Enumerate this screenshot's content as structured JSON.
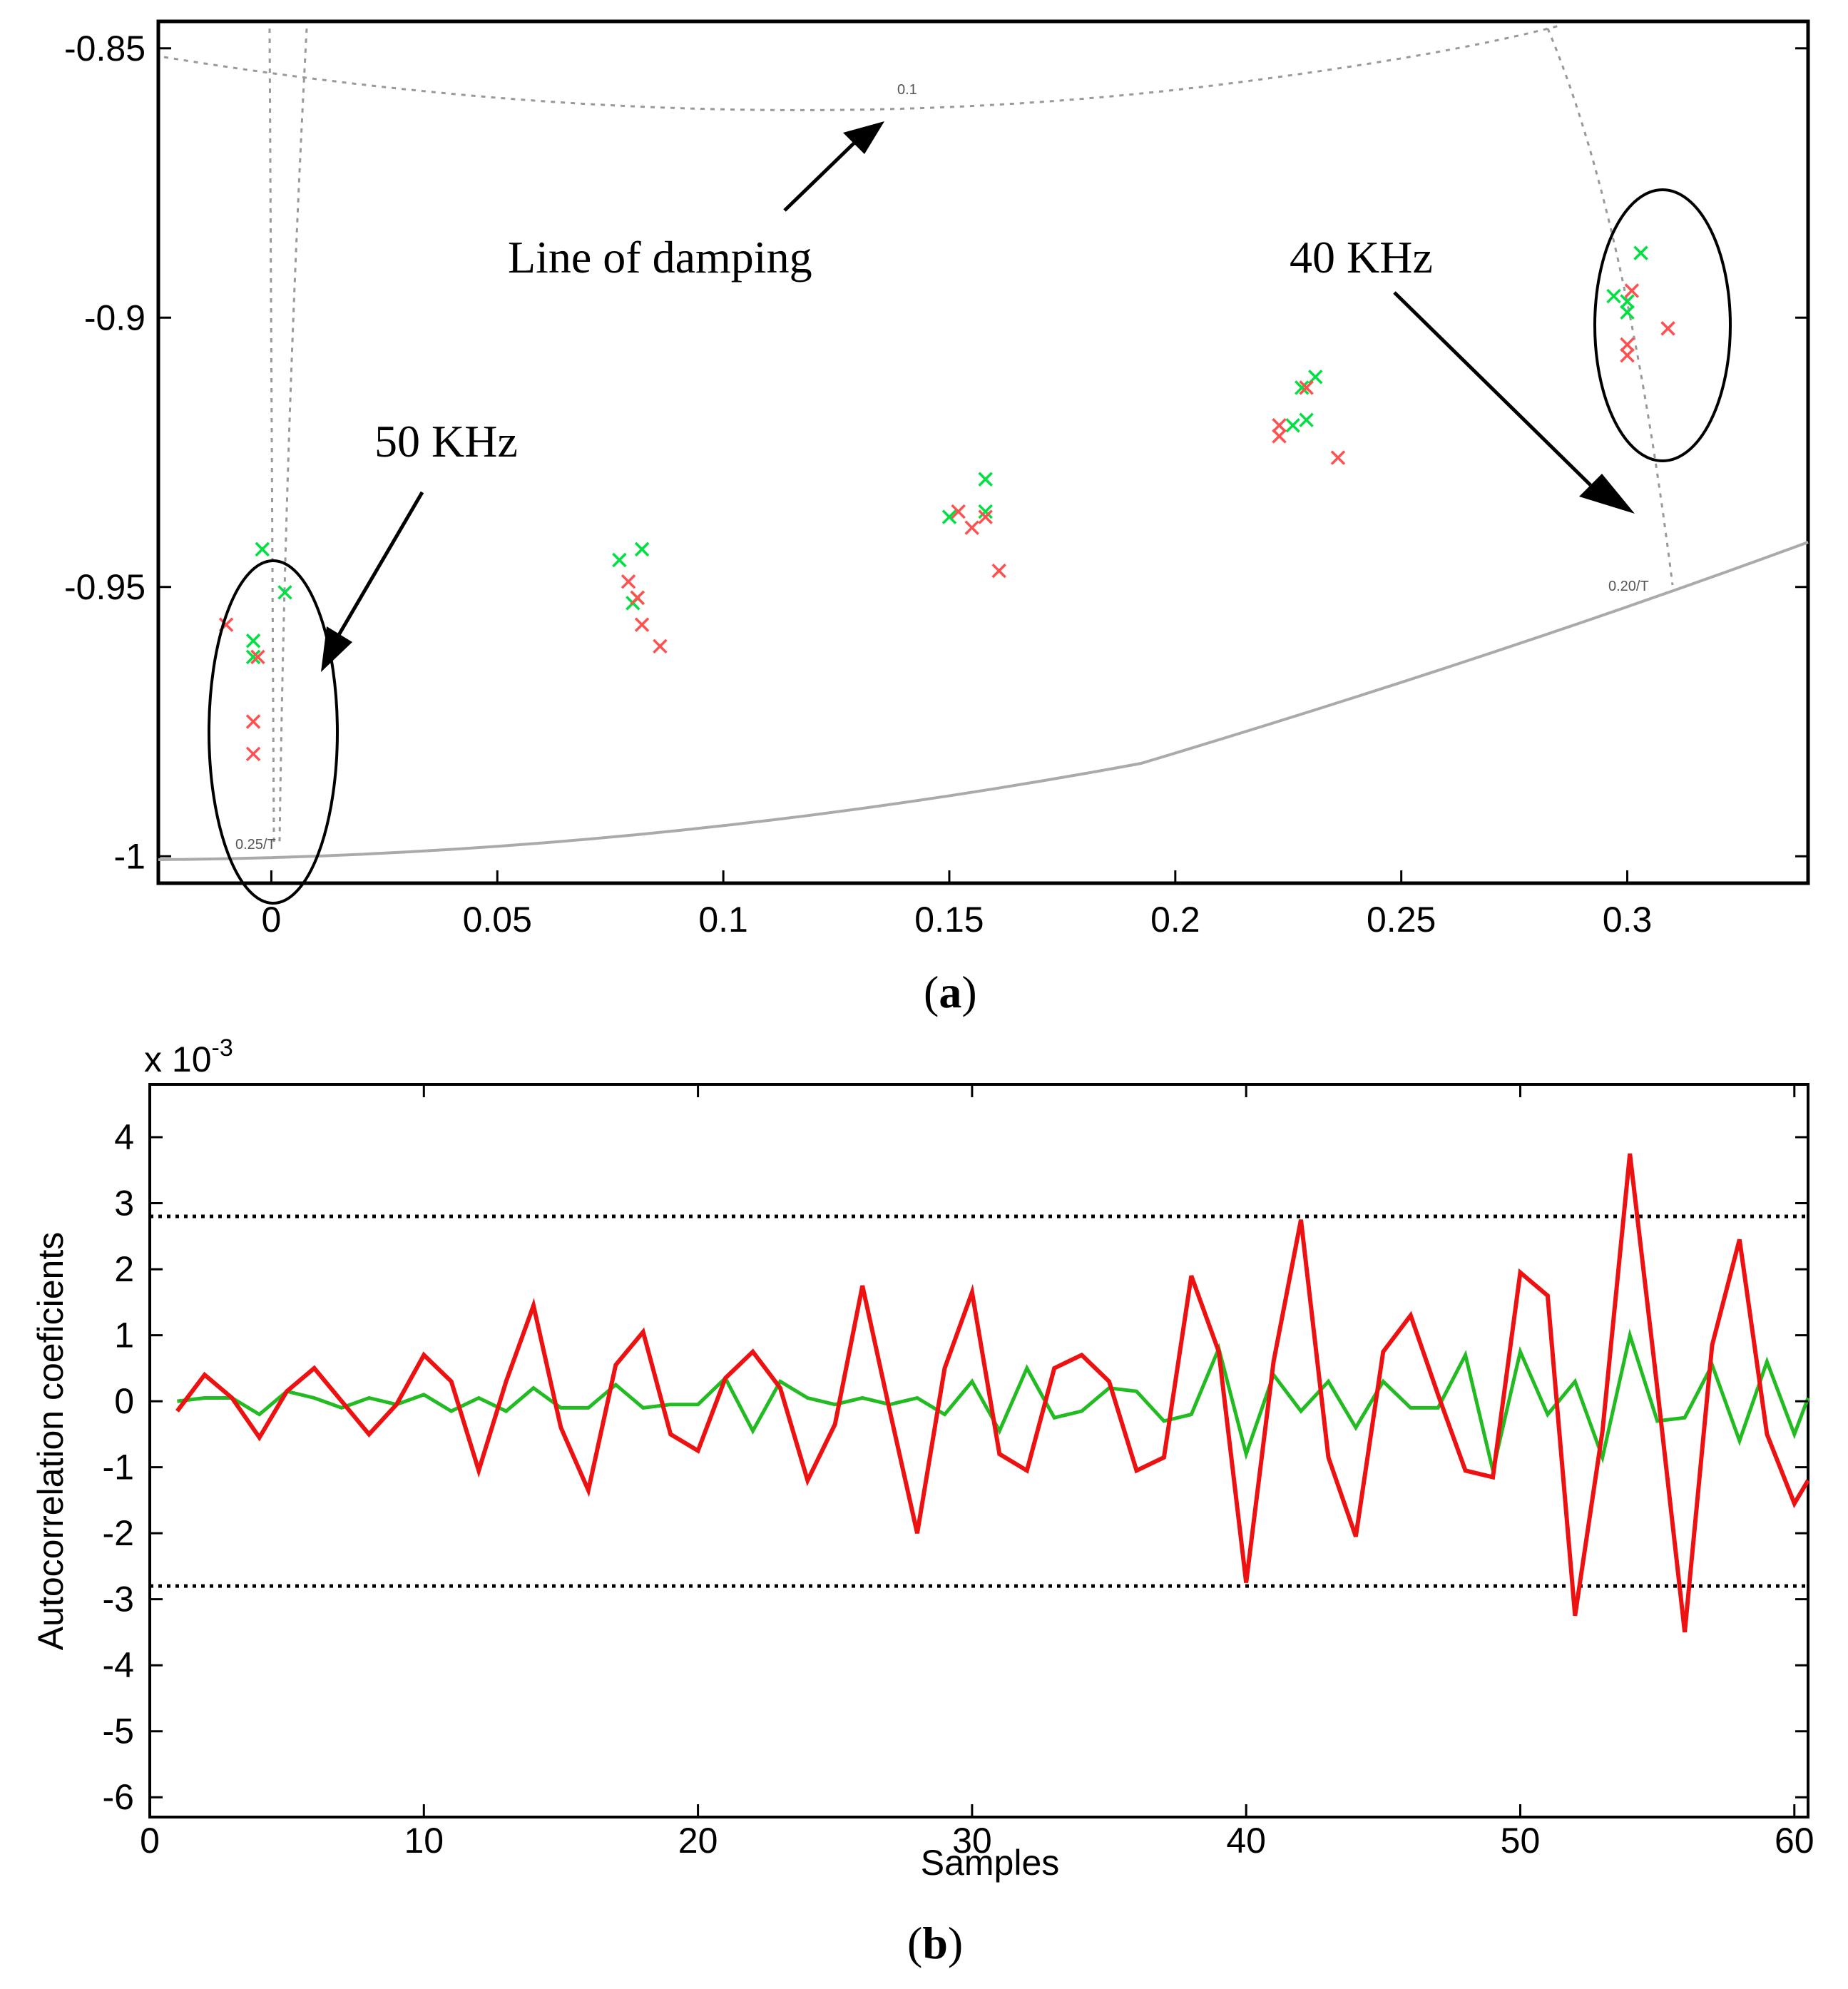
{
  "chart_data": [
    {
      "type": "scatter",
      "panel_label": "(a)",
      "panel_letter": "a",
      "xlim": [
        -0.025,
        0.34
      ],
      "ylim": [
        -1.005,
        -0.845
      ],
      "x_ticks": [
        "0",
        "0.05",
        "0.1",
        "0.15",
        "0.2",
        "0.25",
        "0.3"
      ],
      "x_tick_values": [
        0,
        0.05,
        0.1,
        0.15,
        0.2,
        0.25,
        0.3
      ],
      "y_ticks": [
        "-0.85",
        "-0.9",
        "-0.95",
        "-1"
      ],
      "y_tick_values": [
        -0.85,
        -0.9,
        -0.95,
        -1
      ],
      "grid_labels": [
        "0.1",
        "0.25/T",
        "0.20/T"
      ],
      "annotations": [
        "Line of damping",
        "40 KHz",
        "50 KHz"
      ],
      "series": [
        {
          "name": "green poles",
          "color": "#00e040",
          "points": [
            [
              -0.002,
              -0.943
            ],
            [
              0.003,
              -0.951
            ],
            [
              -0.004,
              -0.96
            ],
            [
              -0.004,
              -0.963
            ],
            [
              0.077,
              -0.945
            ],
            [
              0.082,
              -0.943
            ],
            [
              0.081,
              -0.952
            ],
            [
              0.08,
              -0.953
            ],
            [
              0.15,
              -0.937
            ],
            [
              0.158,
              -0.93
            ],
            [
              0.158,
              -0.936
            ],
            [
              0.226,
              -0.92
            ],
            [
              0.229,
              -0.919
            ],
            [
              0.228,
              -0.913
            ],
            [
              0.231,
              -0.911
            ],
            [
              0.297,
              -0.896
            ],
            [
              0.3,
              -0.897
            ],
            [
              0.3,
              -0.899
            ],
            [
              0.303,
              -0.888
            ]
          ]
        },
        {
          "name": "red poles",
          "color": "#ff5050",
          "points": [
            [
              -0.01,
              -0.957
            ],
            [
              -0.003,
              -0.963
            ],
            [
              -0.004,
              -0.975
            ],
            [
              -0.004,
              -0.981
            ],
            [
              0.079,
              -0.949
            ],
            [
              0.081,
              -0.952
            ],
            [
              0.082,
              -0.957
            ],
            [
              0.086,
              -0.961
            ],
            [
              0.152,
              -0.936
            ],
            [
              0.155,
              -0.939
            ],
            [
              0.158,
              -0.937
            ],
            [
              0.161,
              -0.947
            ],
            [
              0.223,
              -0.92
            ],
            [
              0.223,
              -0.922
            ],
            [
              0.229,
              -0.913
            ],
            [
              0.236,
              -0.926
            ],
            [
              0.301,
              -0.895
            ],
            [
              0.3,
              -0.905
            ],
            [
              0.3,
              -0.907
            ],
            [
              0.309,
              -0.902
            ]
          ]
        }
      ]
    },
    {
      "type": "line",
      "panel_label": "(b)",
      "panel_letter": "b",
      "xlabel": "Samples",
      "ylabel": "Autocorrelation coeficients",
      "y_multiplier": "x 10",
      "y_multiplier_exp": "-3",
      "xlim": [
        0,
        60.5
      ],
      "ylim": [
        -6.3,
        4.8
      ],
      "x_ticks": [
        "0",
        "10",
        "20",
        "30",
        "40",
        "50",
        "60"
      ],
      "x_tick_values": [
        0,
        10,
        20,
        30,
        40,
        50,
        60
      ],
      "y_ticks": [
        "4",
        "3",
        "2",
        "1",
        "0",
        "-1",
        "-2",
        "-3",
        "-4",
        "-5",
        "-6"
      ],
      "y_tick_values": [
        4,
        3,
        2,
        1,
        0,
        -1,
        -2,
        -3,
        -4,
        -5,
        -6
      ],
      "confidence_bounds": [
        2.8,
        -2.8
      ],
      "x": [
        1,
        2,
        3,
        4,
        5,
        6,
        7,
        8,
        9,
        10,
        11,
        12,
        13,
        14,
        15,
        16,
        17,
        18,
        19,
        20,
        21,
        22,
        23,
        24,
        25,
        26,
        27,
        28,
        29,
        30,
        31,
        32,
        33,
        34,
        35,
        36,
        37,
        38,
        39,
        40,
        41,
        42,
        43,
        44,
        45,
        46,
        47,
        48,
        49,
        50,
        51,
        52,
        53,
        54,
        55,
        56,
        57,
        58,
        59,
        60,
        60.5
      ],
      "series": [
        {
          "name": "red",
          "color": "#ee1111",
          "values": [
            -0.15,
            0.4,
            0.05,
            -0.55,
            0.15,
            0.5,
            0.0,
            -0.5,
            -0.05,
            0.7,
            0.3,
            -1.05,
            0.3,
            1.45,
            -0.4,
            -1.35,
            0.55,
            1.05,
            -0.5,
            -0.75,
            0.35,
            0.75,
            0.2,
            -1.2,
            -0.35,
            1.75,
            -0.15,
            -2.0,
            0.5,
            1.65,
            -0.8,
            -1.05,
            0.5,
            0.7,
            0.3,
            -1.05,
            -0.85,
            1.9,
            0.75,
            -2.75,
            0.6,
            2.75,
            -0.85,
            -2.05,
            0.75,
            1.3,
            0.1,
            -1.05,
            -1.15,
            1.95,
            1.6,
            -3.25,
            -0.45,
            3.75,
            0.2,
            -3.5,
            0.85,
            2.45,
            -0.5,
            -1.55,
            -1.2
          ]
        },
        {
          "name": "green",
          "color": "#22bb22",
          "values": [
            0.0,
            0.05,
            0.05,
            -0.2,
            0.15,
            0.05,
            -0.1,
            0.05,
            -0.05,
            0.1,
            -0.15,
            0.05,
            -0.15,
            0.2,
            -0.1,
            -0.1,
            0.25,
            -0.1,
            -0.05,
            -0.05,
            0.35,
            -0.45,
            0.3,
            0.05,
            -0.05,
            0.05,
            -0.05,
            0.05,
            -0.2,
            0.3,
            -0.45,
            0.5,
            -0.25,
            -0.15,
            0.2,
            0.15,
            -0.3,
            -0.2,
            0.8,
            -0.8,
            0.4,
            -0.15,
            0.3,
            -0.4,
            0.3,
            -0.1,
            -0.1,
            0.7,
            -1.05,
            0.75,
            -0.2,
            0.3,
            -0.85,
            1.0,
            -0.3,
            -0.25,
            0.55,
            -0.6,
            0.6,
            -0.5,
            0.05
          ]
        }
      ]
    }
  ]
}
